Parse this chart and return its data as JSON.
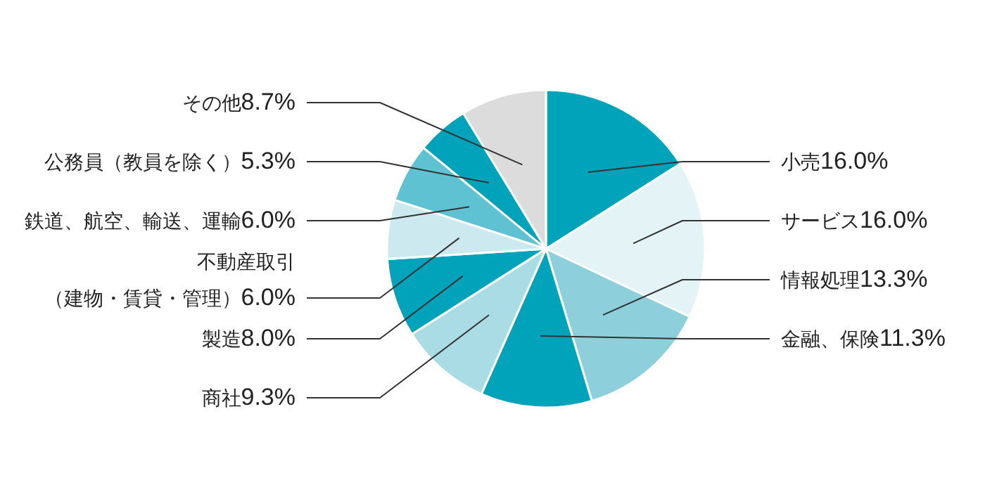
{
  "chart_data": {
    "type": "pie",
    "categories": [
      "小売",
      "サービス",
      "情報処理",
      "金融、保険",
      "商社",
      "製造",
      "不動産取引（建物・賃貸・管理）",
      "鉄道、航空、輸送、運輸",
      "公務員（教員を除く）",
      "その他"
    ],
    "values": [
      16.0,
      16.0,
      13.3,
      11.3,
      9.3,
      8.0,
      6.0,
      6.0,
      5.3,
      8.7
    ],
    "value_labels": [
      "16.0%",
      "16.0%",
      "13.3%",
      "11.3%",
      "9.3%",
      "8.0%",
      "6.0%",
      "6.0%",
      "5.3%",
      "8.7%"
    ],
    "colors": [
      "#00a3b9",
      "#e4f3f6",
      "#8dcfdb",
      "#00a3b9",
      "#a9dce4",
      "#00a3b9",
      "#cbe9ee",
      "#5ec2d2",
      "#00a3b9",
      "#dcdcdc"
    ]
  }
}
